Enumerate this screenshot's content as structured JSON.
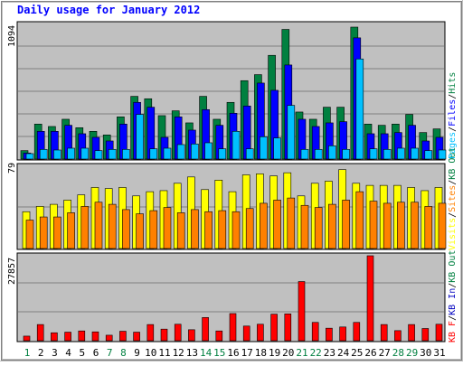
{
  "chart_data": {
    "type": "bar",
    "title": "Daily usage for January 2012",
    "days": [
      "1",
      "2",
      "3",
      "4",
      "5",
      "6",
      "7",
      "8",
      "9",
      "10",
      "11",
      "12",
      "13",
      "14",
      "15",
      "16",
      "17",
      "18",
      "19",
      "20",
      "21",
      "22",
      "23",
      "24",
      "25",
      "26",
      "27",
      "28",
      "29",
      "30",
      "31"
    ],
    "weekend_days": [
      "1",
      "7",
      "8",
      "14",
      "15",
      "21",
      "22",
      "28",
      "29"
    ],
    "top_panel": {
      "max_label": "1094",
      "ymax": 1094,
      "legend": [
        "Pages",
        "/",
        "Files",
        "/",
        "Hits"
      ],
      "legend_colors": [
        "#00c0ff",
        "#000000",
        "#0000ff",
        "#000000",
        "#008040"
      ],
      "series": [
        {
          "name": "Hits",
          "color": "#008040",
          "values": [
            70,
            290,
            270,
            330,
            260,
            230,
            200,
            350,
            520,
            500,
            360,
            400,
            300,
            520,
            330,
            470,
            650,
            700,
            860,
            1075,
            390,
            330,
            430,
            430,
            1094,
            290,
            280,
            290,
            370,
            220,
            250
          ]
        },
        {
          "name": "Files",
          "color": "#0000ff",
          "values": [
            50,
            230,
            230,
            280,
            210,
            180,
            150,
            290,
            470,
            430,
            180,
            350,
            240,
            410,
            280,
            380,
            440,
            630,
            570,
            780,
            330,
            270,
            300,
            310,
            1005,
            210,
            210,
            220,
            280,
            150,
            180
          ]
        },
        {
          "name": "Pages",
          "color": "#00c0ff",
          "values": [
            45,
            80,
            75,
            90,
            90,
            70,
            80,
            80,
            370,
            85,
            90,
            120,
            125,
            135,
            85,
            230,
            85,
            185,
            175,
            445,
            80,
            80,
            110,
            80,
            830,
            85,
            80,
            90,
            90,
            70,
            75
          ]
        }
      ]
    },
    "middle_panel": {
      "max_label": "79",
      "ymax": 79,
      "legend": [
        "Visits",
        "/",
        "Sites",
        "/",
        "KB Out"
      ],
      "legend_colors": [
        "#ffff00",
        "#000000",
        "#ff8000",
        "#000000",
        "#008040"
      ],
      "series": [
        {
          "name": "Visits",
          "color": "#ffff00",
          "values": [
            35,
            40,
            42,
            46,
            51,
            58,
            57,
            58,
            50,
            54,
            55,
            62,
            68,
            56,
            65,
            54,
            70,
            71,
            69,
            72,
            50,
            62,
            64,
            75,
            62,
            60,
            60,
            60,
            58,
            55,
            58
          ]
        },
        {
          "name": "Sites",
          "color": "#ff8000",
          "values": [
            27,
            30,
            30,
            34,
            40,
            44,
            42,
            37,
            33,
            36,
            39,
            34,
            37,
            35,
            36,
            35,
            38,
            43,
            46,
            48,
            41,
            39,
            42,
            46,
            54,
            45,
            43,
            44,
            44,
            40,
            43
          ]
        }
      ]
    },
    "bottom_panel": {
      "max_label": "27857",
      "ymax": 27857,
      "legend": [
        "KB F",
        "/",
        "KB In",
        "/",
        "KB Out"
      ],
      "legend_colors": [
        "#ff0000",
        "#000000",
        "#0000c0",
        "#000000",
        "#008040"
      ],
      "series": [
        {
          "name": "KB F",
          "color": "#ff0000",
          "values": [
            1500,
            5300,
            2600,
            2800,
            3200,
            2900,
            1800,
            3100,
            2800,
            5300,
            3800,
            5400,
            3600,
            7600,
            3200,
            8900,
            4800,
            5400,
            8700,
            8800,
            19400,
            6000,
            4100,
            4500,
            6000,
            27857,
            5300,
            3300,
            5300,
            4000,
            5400
          ]
        }
      ]
    }
  }
}
